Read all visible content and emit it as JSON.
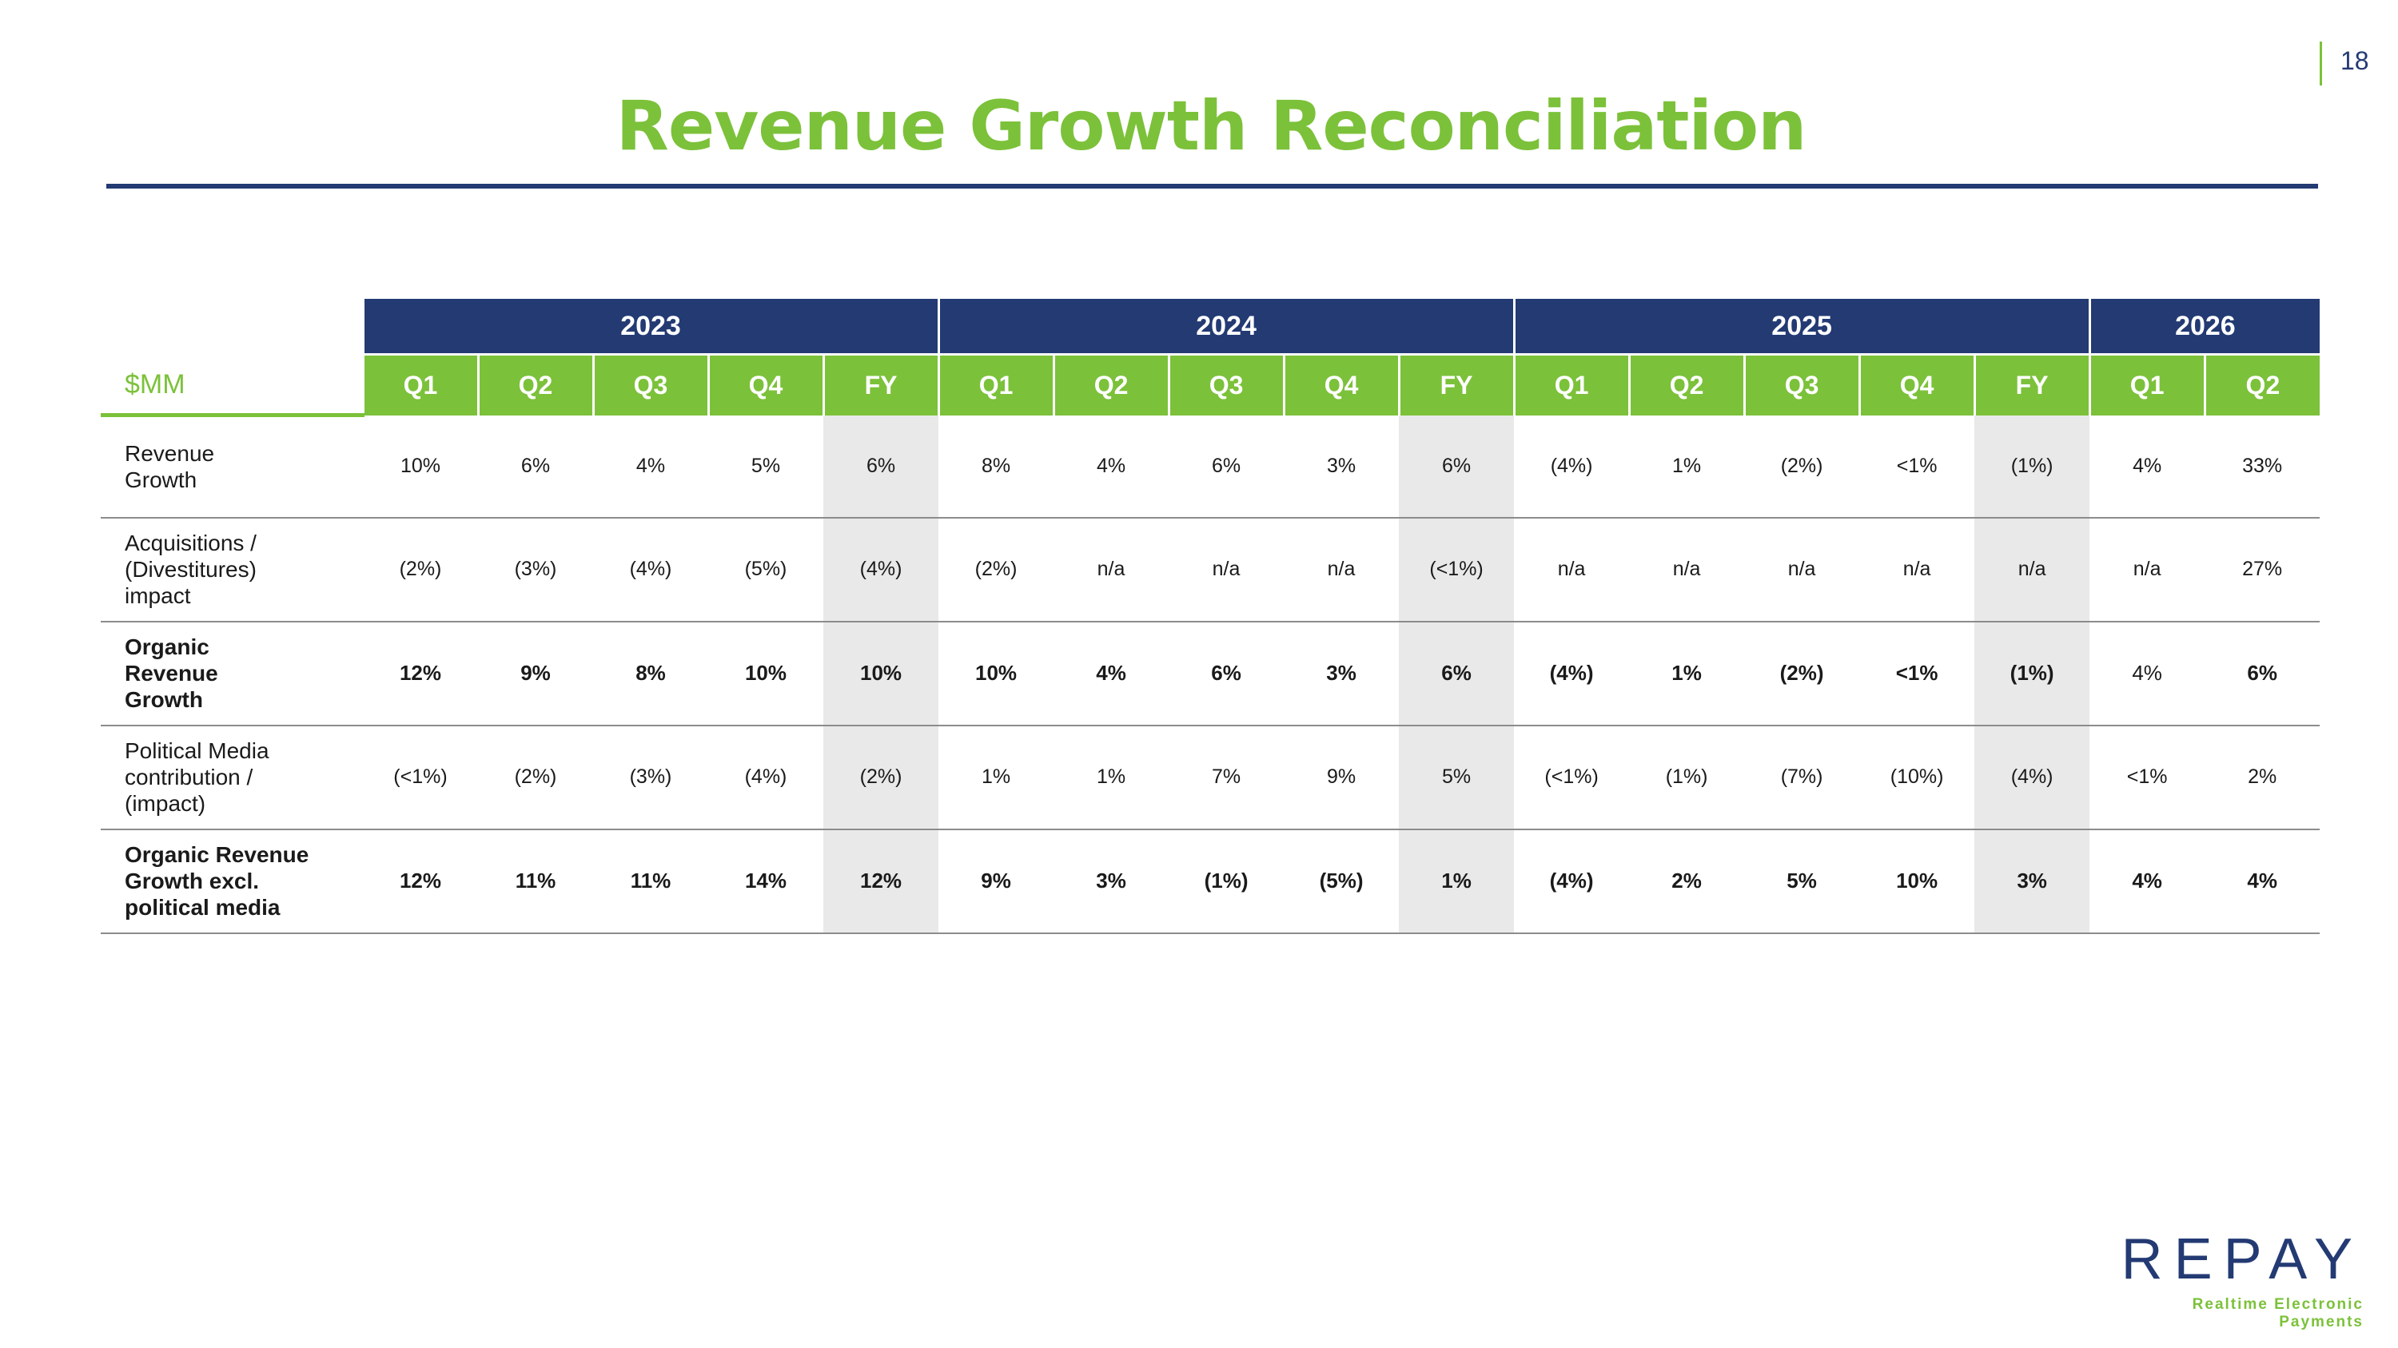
{
  "page_number": "18",
  "title": "Revenue Growth Reconciliation",
  "table": {
    "unit_label": "$MM",
    "years": [
      {
        "label": "2023",
        "span": 5
      },
      {
        "label": "2024",
        "span": 5
      },
      {
        "label": "2025",
        "span": 5
      },
      {
        "label": "2026",
        "span": 2
      }
    ],
    "periods": [
      "Q1",
      "Q2",
      "Q3",
      "Q4",
      "FY",
      "Q1",
      "Q2",
      "Q3",
      "Q4",
      "FY",
      "Q1",
      "Q2",
      "Q3",
      "Q4",
      "FY",
      "Q1",
      "Q2"
    ],
    "rows": [
      {
        "label": [
          "Revenue",
          "Growth"
        ],
        "bold": false,
        "values": [
          "10%",
          "6%",
          "4%",
          "5%",
          "6%",
          "8%",
          "4%",
          "6%",
          "3%",
          "6%",
          "(4%)",
          "1%",
          "(2%)",
          "<1%",
          "(1%)",
          "4%",
          "33%"
        ]
      },
      {
        "label": [
          "Acquisitions /",
          "(Divestitures)",
          "impact"
        ],
        "bold": false,
        "values": [
          "(2%)",
          "(3%)",
          "(4%)",
          "(5%)",
          "(4%)",
          "(2%)",
          "n/a",
          "n/a",
          "n/a",
          "(<1%)",
          "n/a",
          "n/a",
          "n/a",
          "n/a",
          "n/a",
          "n/a",
          "27%"
        ]
      },
      {
        "label": [
          "Organic",
          "Revenue",
          "Growth"
        ],
        "bold": true,
        "normal_cells": [
          15
        ],
        "values": [
          "12%",
          "9%",
          "8%",
          "10%",
          "10%",
          "10%",
          "4%",
          "6%",
          "3%",
          "6%",
          "(4%)",
          "1%",
          "(2%)",
          "<1%",
          "(1%)",
          "4%",
          "6%"
        ]
      },
      {
        "label": [
          "Political Media",
          "contribution /",
          "(impact)"
        ],
        "bold": false,
        "values": [
          "(<1%)",
          "(2%)",
          "(3%)",
          "(4%)",
          "(2%)",
          "1%",
          "1%",
          "7%",
          "9%",
          "5%",
          "(<1%)",
          "(1%)",
          "(7%)",
          "(10%)",
          "(4%)",
          "<1%",
          "2%"
        ]
      },
      {
        "label": [
          "Organic Revenue",
          "Growth excl.",
          "political media"
        ],
        "bold": true,
        "values": [
          "12%",
          "11%",
          "11%",
          "14%",
          "12%",
          "9%",
          "3%",
          "(1%)",
          "(5%)",
          "1%",
          "(4%)",
          "2%",
          "5%",
          "10%",
          "3%",
          "4%",
          "4%"
        ]
      }
    ]
  },
  "logo": {
    "wordmark": "REPAY",
    "tagline": "Realtime Electronic Payments"
  },
  "colors": {
    "green": "#7cc13a",
    "navy": "#233a73",
    "fy_shade": "#e9e9e9"
  }
}
